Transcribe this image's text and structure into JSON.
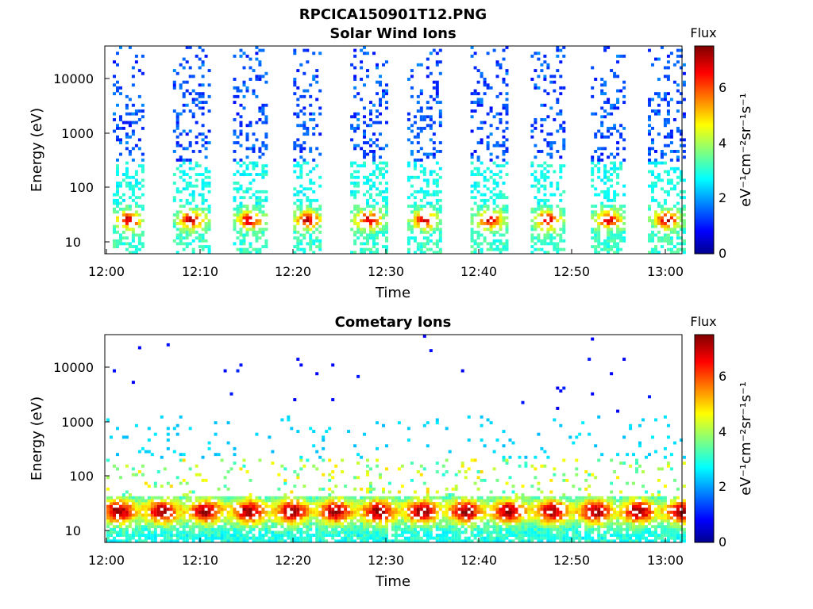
{
  "figure": {
    "filename_title": "RPCICA150901T12.PNG"
  },
  "chart_data": [
    {
      "type": "heatmap",
      "title": "Solar Wind Ions",
      "xlabel": "Time",
      "ylabel": "Energy (eV)",
      "yscale": "log",
      "xlim": [
        "12:00",
        "13:02"
      ],
      "ylim": [
        6,
        40000
      ],
      "xticks": [
        "12:00",
        "12:10",
        "12:20",
        "12:30",
        "12:40",
        "12:50",
        "13:00"
      ],
      "yticks": [
        "10",
        "100",
        "1000",
        "10000"
      ],
      "colorbar": {
        "title": "Flux",
        "label": "eV⁻¹cm⁻²sr⁻¹s⁻¹",
        "range": [
          0,
          7.5
        ],
        "ticks": [
          "0",
          "2",
          "4",
          "6"
        ],
        "colormap": "jet"
      },
      "sweeps": [
        {
          "start": "12:00.5",
          "end": "12:04"
        },
        {
          "start": "12:07",
          "end": "12:11"
        },
        {
          "start": "12:13.5",
          "end": "12:17"
        },
        {
          "start": "12:20",
          "end": "12:23"
        },
        {
          "start": "12:26",
          "end": "12:30"
        },
        {
          "start": "12:32",
          "end": "12:36"
        },
        {
          "start": "12:39",
          "end": "12:43"
        },
        {
          "start": "12:45.5",
          "end": "12:49"
        },
        {
          "start": "12:52",
          "end": "12:55.5"
        },
        {
          "start": "12:58",
          "end": "13:02"
        }
      ],
      "peak_flux": 7.0,
      "peak_energy_eV": [
        15,
        40
      ]
    },
    {
      "type": "heatmap",
      "title": "Cometary Ions",
      "xlabel": "Time",
      "ylabel": "Energy (eV)",
      "yscale": "log",
      "xlim": [
        "12:00",
        "13:02"
      ],
      "ylim": [
        6,
        40000
      ],
      "xticks": [
        "12:00",
        "12:10",
        "12:20",
        "12:30",
        "12:40",
        "12:50",
        "13:00"
      ],
      "yticks": [
        "10",
        "100",
        "1000",
        "10000"
      ],
      "colorbar": {
        "title": "Flux",
        "label": "eV⁻¹cm⁻²sr⁻¹s⁻¹",
        "range": [
          0,
          7.5
        ],
        "ticks": [
          "0",
          "2",
          "4",
          "6"
        ],
        "colormap": "jet"
      },
      "peak_flux": 7.3,
      "peak_energy_eV": [
        10,
        45
      ]
    }
  ]
}
